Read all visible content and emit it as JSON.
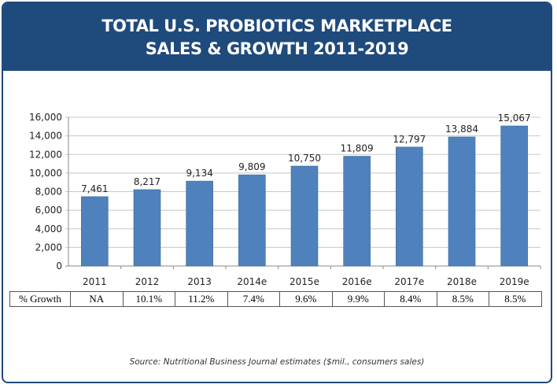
{
  "chart_data": {
    "type": "bar",
    "title_line1": "TOTAL U.S. PROBIOTICS MARKETPLACE",
    "title_line2": "SALES & GROWTH 2011-2019",
    "categories": [
      "2011",
      "2012",
      "2013",
      "2014e",
      "2015e",
      "2016e",
      "2017e",
      "2018e",
      "2019e"
    ],
    "values": [
      7461,
      8217,
      9134,
      9809,
      10750,
      11809,
      12797,
      13884,
      15067
    ],
    "data_labels": [
      "7,461",
      "8,217",
      "9,134",
      "9,809",
      "10,750",
      "11,809",
      "12,797",
      "13,884",
      "15,067"
    ],
    "ylim": [
      0,
      16000
    ],
    "yticks": [
      0,
      2000,
      4000,
      6000,
      8000,
      10000,
      12000,
      14000,
      16000
    ],
    "ytick_labels": [
      "0",
      "2,000",
      "4,000",
      "6,000",
      "8,000",
      "10,000",
      "12,000",
      "14,000",
      "16,000"
    ],
    "grid": true,
    "bar_color": "#4f81bd",
    "header_color": "#1f4a7c",
    "growth_table": {
      "label": "% Growth",
      "values": [
        "NA",
        "10.1%",
        "11.2%",
        "7.4%",
        "9.6%",
        "9.9%",
        "8.4%",
        "8.5%",
        "8.5%"
      ]
    },
    "source": "Source: Nutritional Business Journal estimates ($mil., consumers sales)"
  }
}
